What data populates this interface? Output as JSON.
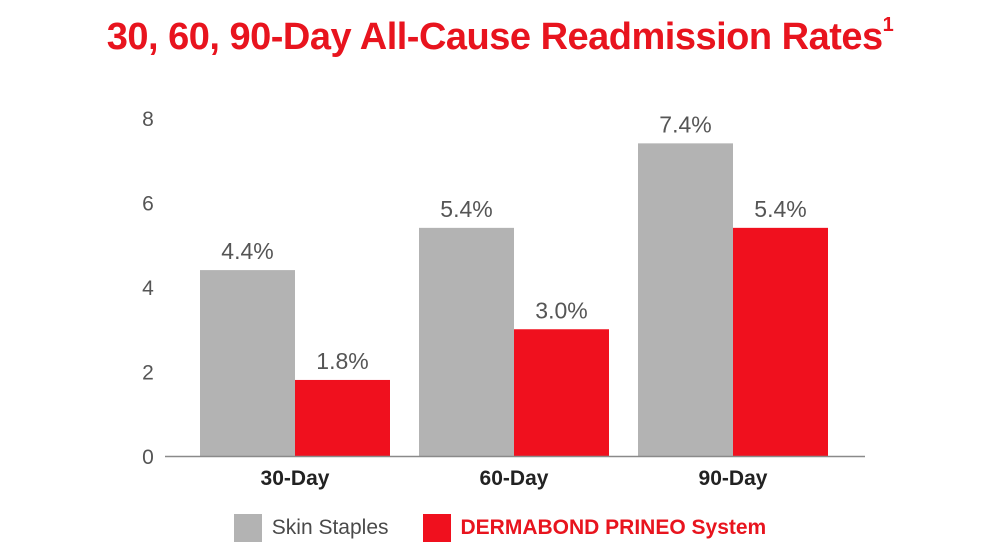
{
  "chart_data": {
    "type": "bar",
    "title": "30, 60, 90-Day All-Cause Readmission Rates",
    "title_superscript": "1",
    "categories": [
      "30-Day",
      "60-Day",
      "90-Day"
    ],
    "series": [
      {
        "name": "Skin Staples",
        "values": [
          4.4,
          5.4,
          7.4
        ],
        "labels": [
          "4.4%",
          "5.4%",
          "7.4%"
        ],
        "color": "#b3b3b3"
      },
      {
        "name": "DERMABOND PRINEO System",
        "values": [
          1.8,
          3.0,
          5.4
        ],
        "labels": [
          "1.8%",
          "3.0%",
          "5.4%"
        ],
        "color": "#f0101e"
      }
    ],
    "yticks": [
      "0",
      "2",
      "4",
      "6",
      "8"
    ],
    "ylim": [
      0,
      8
    ],
    "grid": false,
    "legend_position": "bottom"
  }
}
